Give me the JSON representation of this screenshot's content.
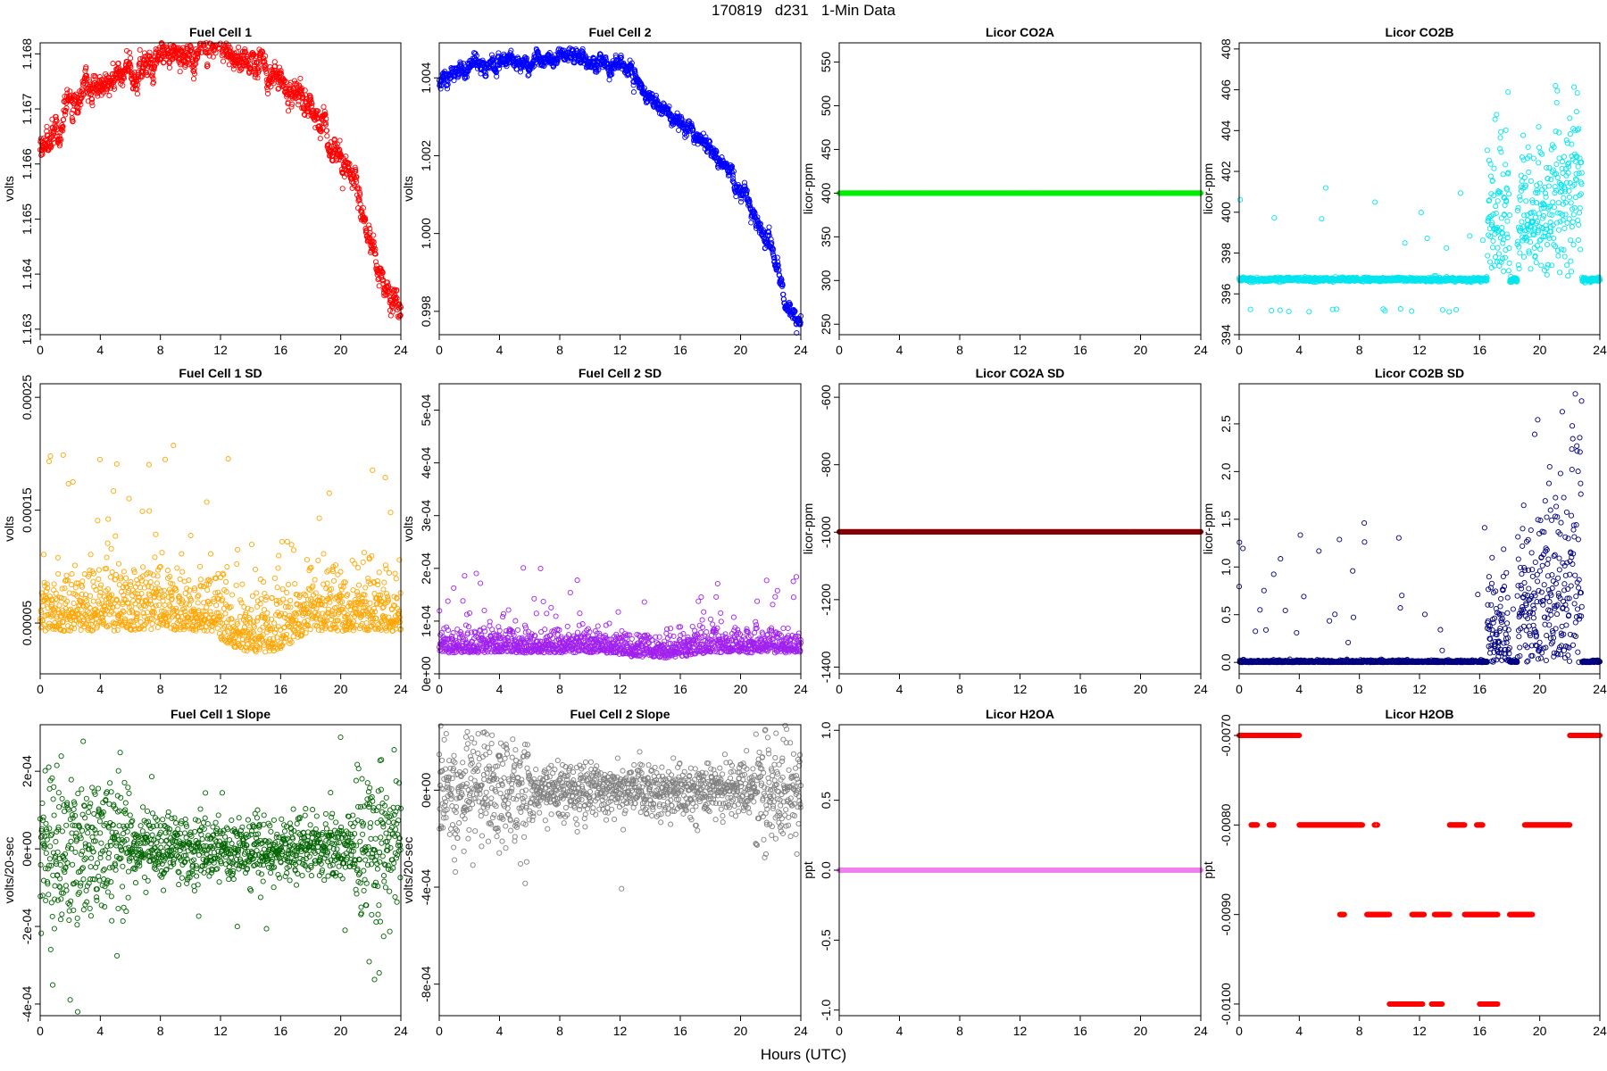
{
  "figure": {
    "title": "170819   d231   1-Min Data",
    "xlabel": "Hours (UTC)"
  },
  "chart_data": [
    {
      "type": "scatter",
      "title": "Fuel Cell 1",
      "ylabel": "volts",
      "color": "#ff0000",
      "xlim": [
        0,
        24
      ],
      "xticks": [
        0,
        4,
        8,
        12,
        16,
        20,
        24
      ],
      "ylim": [
        1.1629,
        1.1682
      ],
      "yticks": [
        1.163,
        1.164,
        1.165,
        1.166,
        1.167,
        1.168
      ],
      "ytick_labels": [
        "1.163",
        "1.164",
        "1.165",
        "1.166",
        "1.167",
        "1.168"
      ],
      "gen": {
        "mode": "curve",
        "points": [
          [
            0,
            1.1663
          ],
          [
            1,
            1.1667
          ],
          [
            2,
            1.167
          ],
          [
            3,
            1.1672
          ],
          [
            4,
            1.1674
          ],
          [
            5,
            1.1676
          ],
          [
            6,
            1.1677
          ],
          [
            7,
            1.1678
          ],
          [
            8,
            1.168
          ],
          [
            9,
            1.168
          ],
          [
            10,
            1.168
          ],
          [
            11,
            1.1681
          ],
          [
            12,
            1.1681
          ],
          [
            13,
            1.1679
          ],
          [
            14,
            1.1678
          ],
          [
            15,
            1.1677
          ],
          [
            16,
            1.1677
          ],
          [
            17,
            1.1673
          ],
          [
            18,
            1.167
          ],
          [
            19,
            1.1666
          ],
          [
            20,
            1.1661
          ],
          [
            21,
            1.1655
          ],
          [
            22,
            1.1645
          ],
          [
            23,
            1.1637
          ],
          [
            24,
            1.1633
          ]
        ],
        "noise": 0.00015,
        "n": 1300,
        "seed": 1
      }
    },
    {
      "type": "scatter",
      "title": "Fuel Cell 2",
      "ylabel": "volts",
      "color": "#0000ff",
      "xlim": [
        0,
        24
      ],
      "xticks": [
        0,
        4,
        8,
        12,
        16,
        20,
        24
      ],
      "ylim": [
        0.9974,
        1.0049
      ],
      "yticks": [
        0.998,
        1.0,
        1.002,
        1.004
      ],
      "ytick_labels": [
        "0.998",
        "1.000",
        "1.002",
        "1.004"
      ],
      "gen": {
        "mode": "curve",
        "points": [
          [
            0,
            1.0039
          ],
          [
            2,
            1.0043
          ],
          [
            4,
            1.0044
          ],
          [
            6,
            1.0043
          ],
          [
            8,
            1.0045
          ],
          [
            9,
            1.0046
          ],
          [
            10,
            1.0044
          ],
          [
            12,
            1.0043
          ],
          [
            13,
            1.004
          ],
          [
            14,
            1.0035
          ],
          [
            16,
            1.0029
          ],
          [
            18,
            1.0022
          ],
          [
            20,
            1.0012
          ],
          [
            21,
            1.0005
          ],
          [
            22,
            0.9997
          ],
          [
            23,
            0.9981
          ],
          [
            24,
            0.9977
          ]
        ],
        "noise": 0.00012,
        "n": 1300,
        "seed": 2
      }
    },
    {
      "type": "scatter",
      "title": "Licor CO2A",
      "ylabel": "licor-ppm",
      "color": "#00ee00",
      "xlim": [
        0,
        24
      ],
      "xticks": [
        0,
        4,
        8,
        12,
        16,
        20,
        24
      ],
      "ylim": [
        238,
        572
      ],
      "yticks": [
        250,
        300,
        350,
        400,
        450,
        500,
        550
      ],
      "ytick_labels": [
        "250",
        "300",
        "350",
        "400",
        "450",
        "500",
        "550"
      ],
      "gen": {
        "mode": "constant",
        "value": 400,
        "n": 1440
      }
    },
    {
      "type": "scatter",
      "title": "Licor CO2B",
      "ylabel": "licor-ppm",
      "color": "#00e5ee",
      "xlim": [
        0,
        24
      ],
      "xticks": [
        0,
        4,
        8,
        12,
        16,
        20,
        24
      ],
      "ylim": [
        394,
        408.3
      ],
      "yticks": [
        394,
        396,
        398,
        400,
        402,
        404,
        406,
        408
      ],
      "ytick_labels": [
        "394",
        "396",
        "398",
        "400",
        "402",
        "404",
        "406",
        "408"
      ],
      "gen": {
        "mode": "co2b",
        "base": 396.7,
        "n": 1440,
        "seed": 3
      }
    },
    {
      "type": "scatter",
      "title": "Fuel Cell 1 SD",
      "ylabel": "volts",
      "color": "#ffa500",
      "xlim": [
        0,
        24
      ],
      "xticks": [
        0,
        4,
        8,
        12,
        16,
        20,
        24
      ],
      "ylim": [
        5e-06,
        0.000262
      ],
      "yticks": [
        5e-05,
        0.00015,
        0.00025
      ],
      "ytick_labels": [
        "0.00005",
        "0.00015",
        "0.00025"
      ],
      "gen": {
        "mode": "sd",
        "base": 5.5e-05,
        "spread": 3e-05,
        "dip": 2e-05,
        "n": 1300,
        "seed": 4
      }
    },
    {
      "type": "scatter",
      "title": "Fuel Cell 2 SD",
      "ylabel": "volts",
      "color": "#a020f0",
      "xlim": [
        0,
        24
      ],
      "xticks": [
        0,
        4,
        8,
        12,
        16,
        20,
        24
      ],
      "ylim": [
        0,
        0.00055
      ],
      "yticks": [
        0,
        0.0001,
        0.0002,
        0.0003,
        0.0004,
        0.0005
      ],
      "ytick_labels": [
        "0e+00",
        "1e-04",
        "2e-04",
        "3e-04",
        "4e-04",
        "5e-04"
      ],
      "gen": {
        "mode": "sd",
        "base": 5e-05,
        "spread": 2.5e-05,
        "dip": 1e-05,
        "n": 1300,
        "seed": 5
      }
    },
    {
      "type": "scatter",
      "title": "Licor CO2A SD",
      "ylabel": "licor-ppm",
      "color": "#8b0000",
      "xlim": [
        0,
        24
      ],
      "xticks": [
        0,
        4,
        8,
        12,
        16,
        20,
        24
      ],
      "ylim": [
        -1420,
        -560
      ],
      "yticks": [
        -1400,
        -1200,
        -1000,
        -800,
        -600
      ],
      "ytick_labels": [
        "-1400",
        "-1200",
        "-1000",
        "-800",
        "-600"
      ],
      "gen": {
        "mode": "constant",
        "value": -999,
        "n": 1440
      }
    },
    {
      "type": "scatter",
      "title": "Licor CO2B SD",
      "ylabel": "licor-ppm",
      "color": "#000080",
      "xlim": [
        0,
        24
      ],
      "xticks": [
        0,
        4,
        8,
        12,
        16,
        20,
        24
      ],
      "ylim": [
        -0.12,
        2.92
      ],
      "yticks": [
        0,
        0.5,
        1.0,
        1.5,
        2.0,
        2.5
      ],
      "ytick_labels": [
        "0.0",
        "0.5",
        "1.0",
        "1.5",
        "2.0",
        "2.5"
      ],
      "gen": {
        "mode": "co2bsd",
        "n": 1440,
        "seed": 6
      }
    },
    {
      "type": "scatter",
      "title": "Fuel Cell 1 Slope",
      "ylabel": "volts/20-sec",
      "color": "#006400",
      "xlim": [
        0,
        24
      ],
      "xticks": [
        0,
        4,
        8,
        12,
        16,
        20,
        24
      ],
      "ylim": [
        -0.00043,
        0.00032
      ],
      "yticks": [
        -0.0004,
        -0.0002,
        0,
        0.0002
      ],
      "ytick_labels": [
        "-4e-04",
        "-2e-04",
        "0e+00",
        "2e-04"
      ],
      "gen": {
        "mode": "slope",
        "spread": 6e-05,
        "n": 1300,
        "seed": 7
      }
    },
    {
      "type": "scatter",
      "title": "Fuel Cell 2 Slope",
      "ylabel": "volts/20-sec",
      "color": "#808080",
      "xlim": [
        0,
        24
      ],
      "xticks": [
        0,
        4,
        8,
        12,
        16,
        20,
        24
      ],
      "ylim": [
        -0.00093,
        0.00027
      ],
      "yticks": [
        -0.0008,
        -0.0004,
        0
      ],
      "ytick_labels": [
        "-8e-04",
        "-4e-04",
        "0e+00"
      ],
      "gen": {
        "mode": "slope",
        "spread": 8e-05,
        "n": 1300,
        "seed": 8
      }
    },
    {
      "type": "scatter",
      "title": "Licor H2OA",
      "ylabel": "ppt",
      "color": "#ee82ee",
      "xlim": [
        0,
        24
      ],
      "xticks": [
        0,
        4,
        8,
        12,
        16,
        20,
        24
      ],
      "ylim": [
        -1.04,
        1.04
      ],
      "yticks": [
        -1.0,
        -0.5,
        0,
        0.5,
        1.0
      ],
      "ytick_labels": [
        "-1.0",
        "-0.5",
        "0.0",
        "0.5",
        "1.0"
      ],
      "gen": {
        "mode": "constant",
        "value": 0,
        "n": 1440
      }
    },
    {
      "type": "scatter",
      "title": "Licor H2OB",
      "ylabel": "ppt",
      "color": "#ff0000",
      "xlim": [
        0,
        24
      ],
      "xticks": [
        0,
        4,
        8,
        12,
        16,
        20,
        24
      ],
      "ylim": [
        -0.01013,
        -0.00688
      ],
      "yticks": [
        -0.01,
        -0.009,
        -0.008,
        -0.007
      ],
      "ytick_labels": [
        "-0.0100",
        "-0.0090",
        "-0.0080",
        "-0.0070"
      ],
      "gen": {
        "mode": "levels",
        "segments": [
          [
            0,
            4,
            -0.007
          ],
          [
            0.8,
            1.2,
            -0.008
          ],
          [
            2,
            2.3,
            -0.008
          ],
          [
            4,
            7.5,
            -0.008
          ],
          [
            7.5,
            8.2,
            -0.008
          ],
          [
            9,
            9.2,
            -0.008
          ],
          [
            6.7,
            7,
            -0.009
          ],
          [
            8.5,
            10,
            -0.009
          ],
          [
            11.5,
            12.3,
            -0.009
          ],
          [
            13,
            14,
            -0.009
          ],
          [
            15,
            17.2,
            -0.009
          ],
          [
            18,
            19.5,
            -0.009
          ],
          [
            14,
            15,
            -0.008
          ],
          [
            15.8,
            16.2,
            -0.008
          ],
          [
            19,
            22,
            -0.008
          ],
          [
            22,
            24,
            -0.007
          ],
          [
            10,
            12.2,
            -0.01
          ],
          [
            12.8,
            13.5,
            -0.01
          ],
          [
            16,
            17.2,
            -0.01
          ]
        ],
        "n": 1440
      }
    }
  ]
}
